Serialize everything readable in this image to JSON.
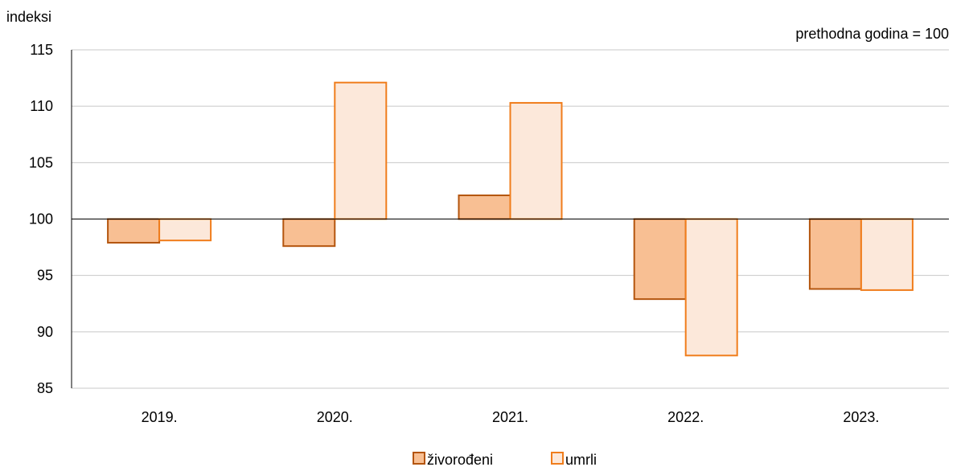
{
  "chart_data": {
    "type": "bar",
    "ylabel": "indeksi",
    "note": "prethodna godina = 100",
    "categories": [
      "2019.",
      "2020.",
      "2021.",
      "2022.",
      "2023."
    ],
    "baseline": 100,
    "ylim": [
      85,
      115
    ],
    "yticks": [
      85,
      90,
      95,
      100,
      105,
      110,
      115
    ],
    "grid": true,
    "legend_position": "bottom",
    "series": [
      {
        "name": "živorođeni",
        "values": [
          97.9,
          97.6,
          102.1,
          92.9,
          93.8
        ],
        "fill": "#F8BF93",
        "stroke": "#B4550E"
      },
      {
        "name": "umrli",
        "values": [
          98.1,
          112.1,
          110.3,
          87.9,
          93.7
        ],
        "fill": "#FCE8DA",
        "stroke": "#F07D1C"
      }
    ]
  }
}
